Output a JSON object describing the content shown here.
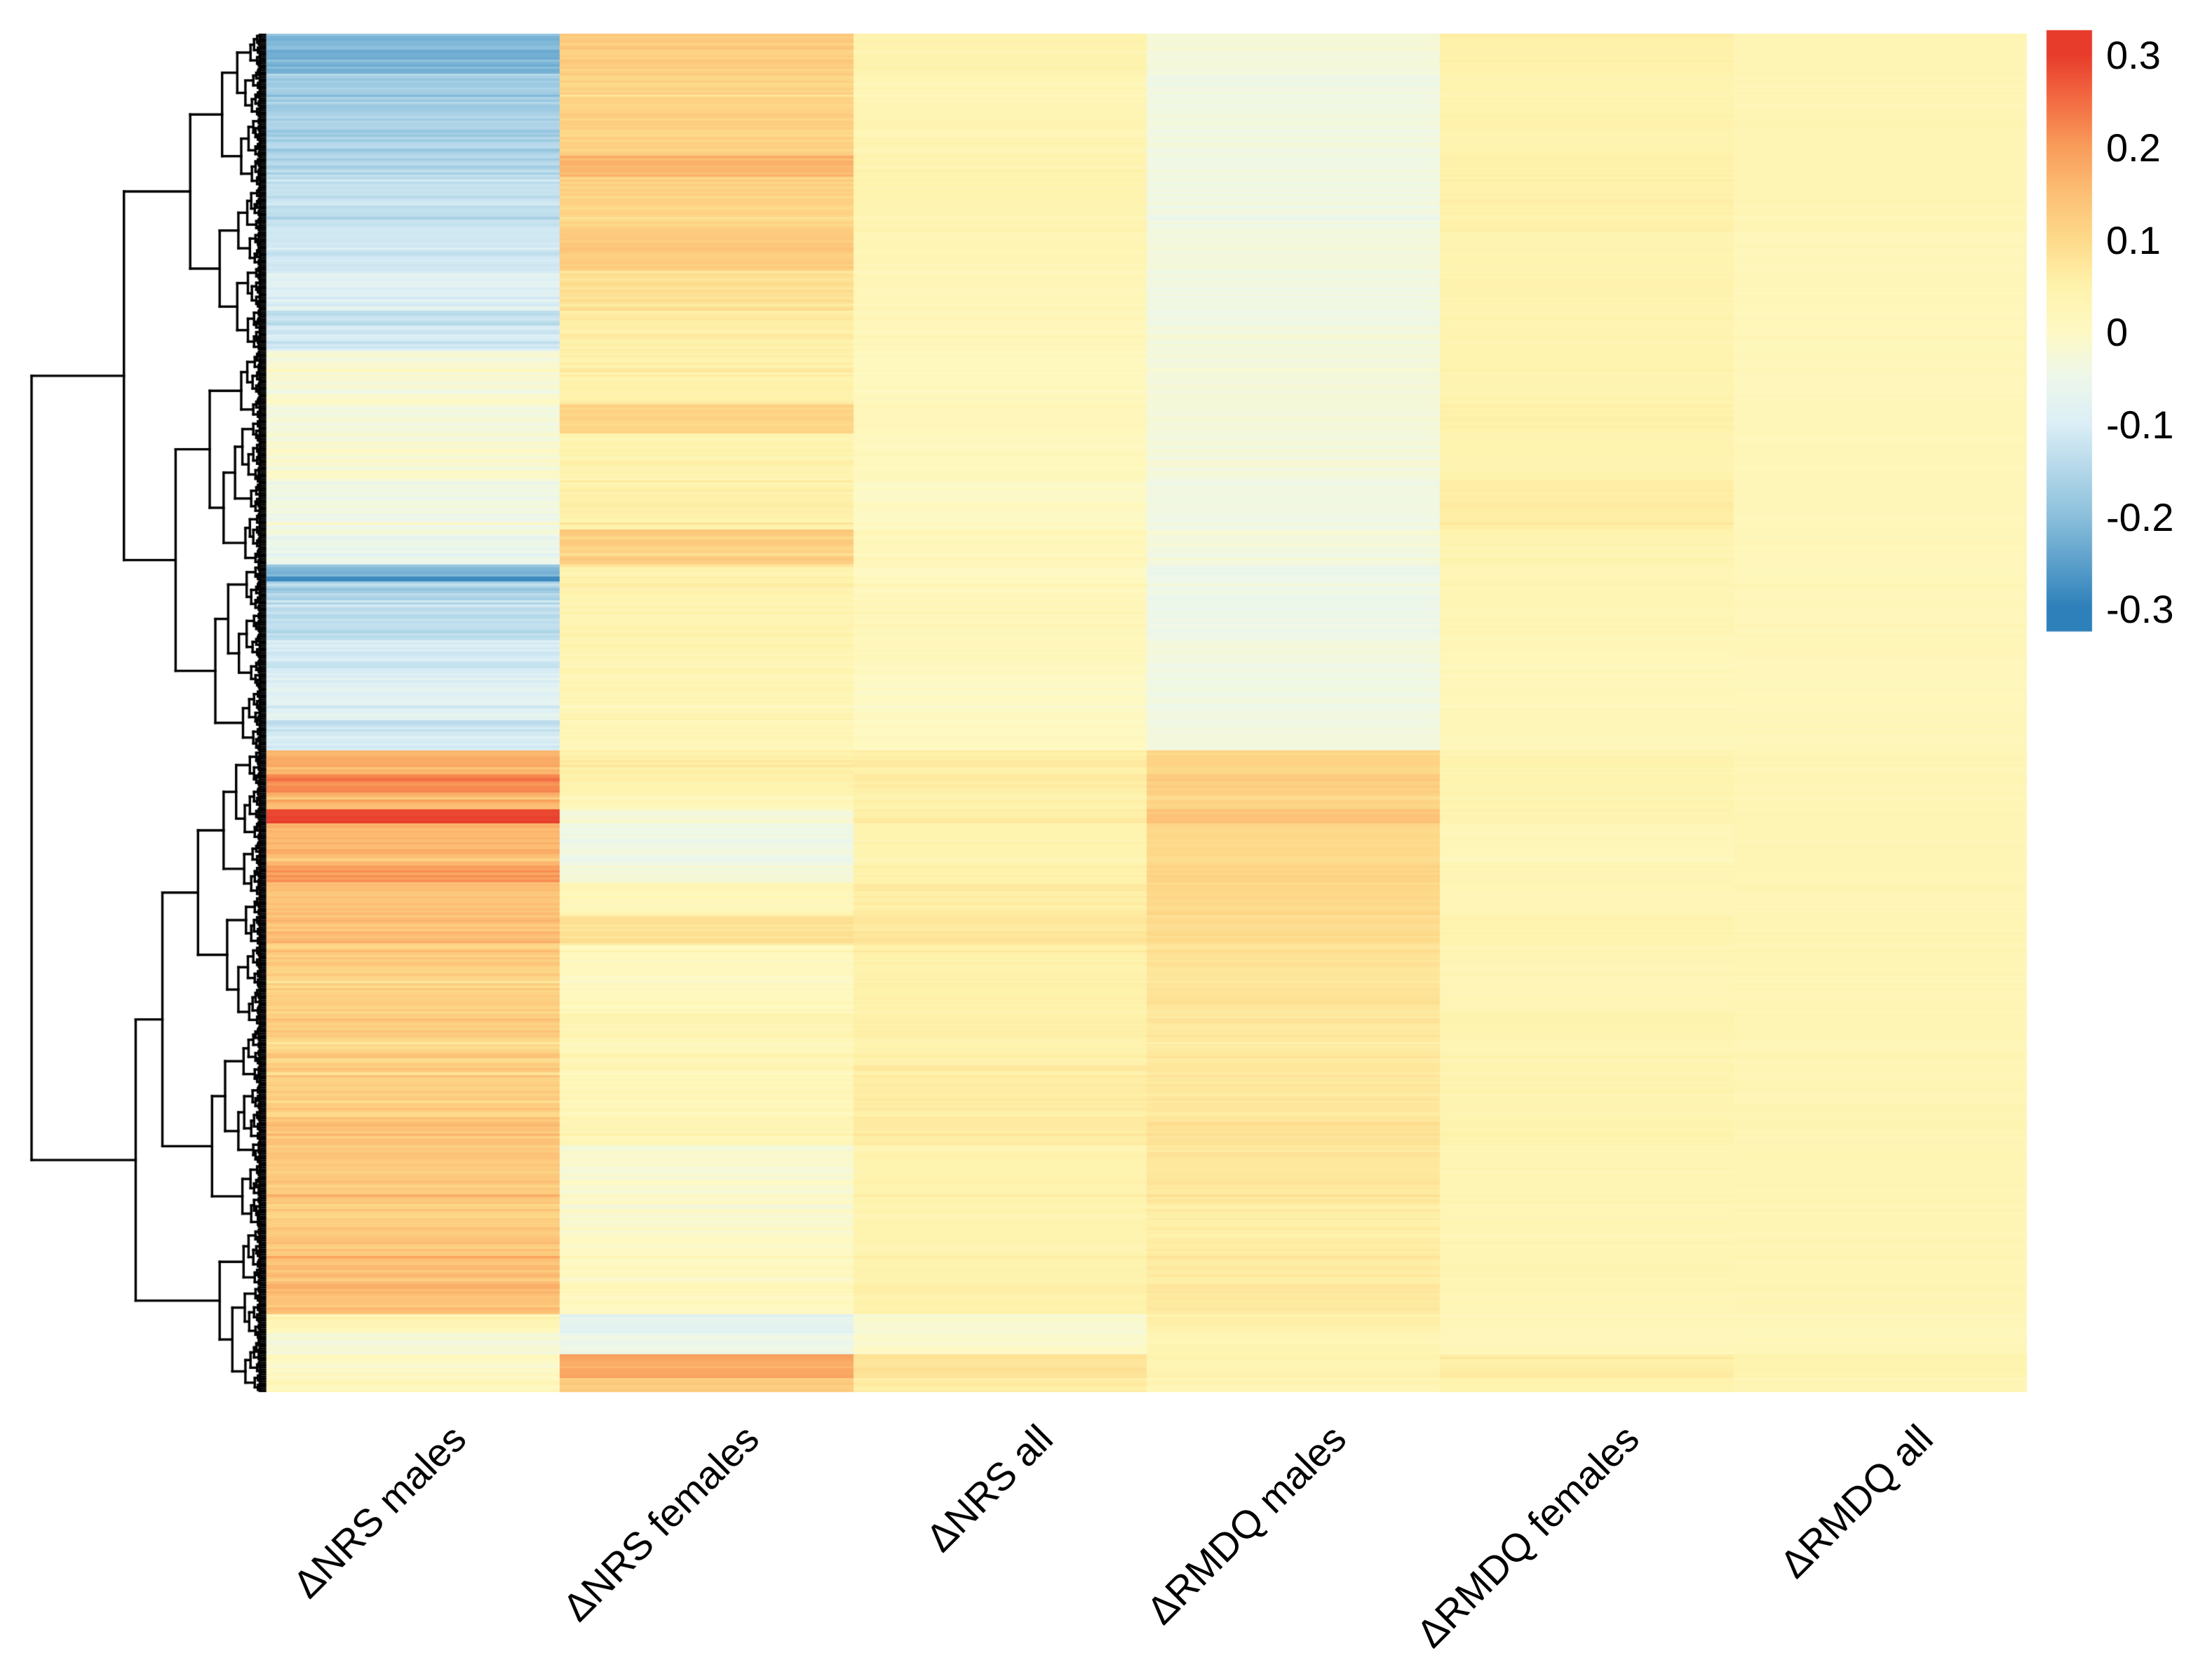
{
  "figure": {
    "background": "#FFFFFF"
  },
  "chart_data": {
    "type": "heatmap",
    "variant": "clustered heatmap with row dendrogram (pheatmap-style), no visible row labels",
    "title": "",
    "columns": [
      "ΔNRS males",
      "ΔNRS females",
      "ΔNRS all",
      "ΔRMDQ males",
      "ΔRMDQ females",
      "ΔRMDQ all"
    ],
    "n_rows": 578,
    "value_range": [
      -0.3,
      0.3
    ],
    "legend": {
      "position": "top-right vertical colorbar",
      "ticks": [
        "0.3",
        "0.2",
        "0.1",
        "0",
        "-0.1",
        "-0.2",
        "-0.3"
      ],
      "tick_values": [
        0.3,
        0.2,
        0.1,
        0,
        -0.1,
        -0.2,
        -0.3
      ]
    },
    "colormap": {
      "name": "RdYlBu reversed (red = positive, pale yellow = 0, blue = negative)",
      "anchors": [
        {
          "t": -0.3,
          "color": "#2E80BA"
        },
        {
          "t": -0.2,
          "color": "#8CC0DC"
        },
        {
          "t": -0.1,
          "color": "#DCEFF6"
        },
        {
          "t": -0.05,
          "color": "#EDF7EA"
        },
        {
          "t": 0.0,
          "color": "#FEF9C3"
        },
        {
          "t": 0.05,
          "color": "#FEF2AB"
        },
        {
          "t": 0.1,
          "color": "#FDD98A"
        },
        {
          "t": 0.15,
          "color": "#FCBE74"
        },
        {
          "t": 0.2,
          "color": "#F89C5A"
        },
        {
          "t": 0.25,
          "color": "#F26B42"
        },
        {
          "t": 0.3,
          "color": "#E73B2B"
        }
      ]
    },
    "row_dendrogram": {
      "side": "left",
      "line_color": "#000000",
      "main_split_row": 305,
      "top_cluster_rows": 305,
      "bottom_cluster_rows": 273,
      "secondary_splits": [
        135,
        508
      ],
      "description": "Top cluster is predominantly negative (blue) in ΔNRS males; bottom cluster is predominantly positive (orange/red) in ΔNRS males and ΔRMDQ males."
    },
    "bands_format": [
      "row_count",
      "approx mean value per column: [ΔNRS males, ΔNRS females, ΔNRS all, ΔRMDQ males, ΔRMDQ females, ΔRMDQ all]"
    ],
    "bands": [
      [
        17,
        [
          -0.22,
          0.12,
          0.04,
          -0.03,
          0.05,
          0.03
        ]
      ],
      [
        35,
        [
          -0.17,
          0.11,
          0.03,
          -0.04,
          0.04,
          0.03
        ]
      ],
      [
        9,
        [
          -0.15,
          0.16,
          0.04,
          -0.04,
          0.05,
          0.03
        ]
      ],
      [
        23,
        [
          -0.13,
          0.11,
          0.04,
          -0.04,
          0.05,
          0.03
        ]
      ],
      [
        17,
        [
          -0.11,
          0.13,
          0.03,
          -0.03,
          0.04,
          0.02
        ]
      ],
      [
        17,
        [
          -0.09,
          0.08,
          0.02,
          -0.04,
          0.04,
          0.02
        ]
      ],
      [
        6,
        [
          -0.13,
          0.07,
          0.02,
          -0.04,
          0.04,
          0.02
        ]
      ],
      [
        11,
        [
          -0.11,
          0.06,
          0.02,
          -0.03,
          0.04,
          0.02
        ]
      ],
      [
        23,
        [
          -0.02,
          0.05,
          0.01,
          -0.03,
          0.04,
          0.02
        ]
      ],
      [
        12,
        [
          -0.03,
          0.11,
          0.02,
          -0.03,
          0.05,
          0.02
        ]
      ],
      [
        20,
        [
          -0.02,
          0.04,
          0.01,
          -0.03,
          0.04,
          0.02
        ]
      ],
      [
        21,
        [
          -0.04,
          0.05,
          0.0,
          -0.04,
          0.06,
          0.02
        ]
      ],
      [
        15,
        [
          -0.05,
          0.12,
          0.02,
          -0.03,
          0.04,
          0.02
        ]
      ],
      [
        5,
        [
          -0.2,
          0.05,
          0.01,
          -0.05,
          0.03,
          0.02
        ]
      ],
      [
        2,
        [
          -0.29,
          0.05,
          0.01,
          -0.05,
          0.03,
          0.02
        ]
      ],
      [
        5,
        [
          -0.18,
          0.04,
          0.01,
          -0.05,
          0.03,
          0.02
        ]
      ],
      [
        19,
        [
          -0.14,
          0.04,
          0.02,
          -0.05,
          0.03,
          0.02
        ]
      ],
      [
        15,
        [
          -0.12,
          0.03,
          0.01,
          -0.04,
          0.02,
          0.02
        ]
      ],
      [
        20,
        [
          -0.08,
          0.03,
          0.0,
          -0.04,
          0.02,
          0.02
        ]
      ],
      [
        6,
        [
          -0.13,
          0.02,
          0.0,
          -0.04,
          0.02,
          0.02
        ]
      ],
      [
        7,
        [
          -0.09,
          0.03,
          0.01,
          -0.03,
          0.02,
          0.02
        ]
      ],
      [
        10,
        [
          0.17,
          0.06,
          0.06,
          0.11,
          0.04,
          0.03
        ]
      ],
      [
        8,
        [
          0.22,
          0.05,
          0.06,
          0.12,
          0.04,
          0.03
        ]
      ],
      [
        7,
        [
          0.17,
          0.03,
          0.05,
          0.11,
          0.04,
          0.03
        ]
      ],
      [
        6,
        [
          0.29,
          -0.02,
          0.06,
          0.14,
          0.04,
          0.03
        ]
      ],
      [
        18,
        [
          0.16,
          -0.04,
          0.04,
          0.1,
          0.02,
          0.03
        ]
      ],
      [
        7,
        [
          0.2,
          -0.03,
          0.05,
          0.11,
          0.03,
          0.03
        ]
      ],
      [
        14,
        [
          0.15,
          0.02,
          0.06,
          0.1,
          0.03,
          0.03
        ]
      ],
      [
        13,
        [
          0.14,
          0.08,
          0.07,
          0.09,
          0.04,
          0.03
        ]
      ],
      [
        27,
        [
          0.12,
          0.01,
          0.05,
          0.08,
          0.03,
          0.03
        ]
      ],
      [
        24,
        [
          0.12,
          0.03,
          0.05,
          0.07,
          0.04,
          0.03
        ]
      ],
      [
        24,
        [
          0.12,
          0.02,
          0.06,
          0.07,
          0.04,
          0.03
        ]
      ],
      [
        10,
        [
          0.14,
          0.02,
          0.06,
          0.08,
          0.04,
          0.03
        ]
      ],
      [
        24,
        [
          0.13,
          -0.02,
          0.04,
          0.07,
          0.03,
          0.03
        ]
      ],
      [
        11,
        [
          0.12,
          -0.01,
          0.04,
          0.06,
          0.03,
          0.03
        ]
      ],
      [
        24,
        [
          0.14,
          0.0,
          0.04,
          0.06,
          0.03,
          0.03
        ]
      ],
      [
        13,
        [
          0.15,
          0.01,
          0.05,
          0.07,
          0.03,
          0.03
        ]
      ],
      [
        8,
        [
          0.02,
          -0.08,
          -0.02,
          0.05,
          0.02,
          0.02
        ]
      ],
      [
        9,
        [
          -0.03,
          -0.05,
          -0.01,
          0.03,
          0.02,
          0.02
        ]
      ],
      [
        10,
        [
          0.0,
          0.18,
          0.08,
          0.04,
          0.06,
          0.04
        ]
      ],
      [
        6,
        [
          0.02,
          0.12,
          0.06,
          0.03,
          0.04,
          0.03
        ]
      ]
    ]
  }
}
